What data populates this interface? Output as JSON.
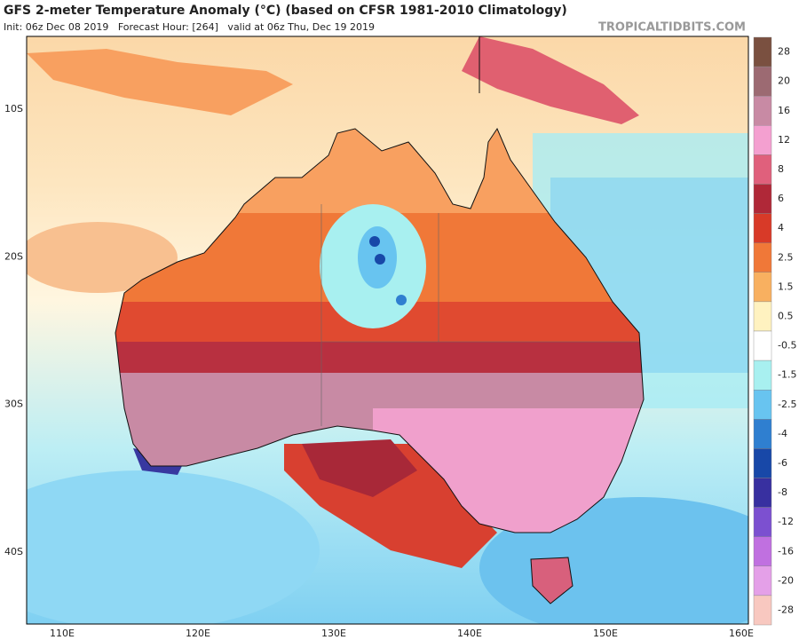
{
  "header": {
    "title": "GFS 2-meter Temperature Anomaly (°C) (based on CFSR 1981-2010 Climatology)",
    "subtitle": "Init: 06z Dec 08 2019   Forecast Hour: [264]   valid at 06z Thu, Dec 19 2019",
    "credit": "TROPICALTIDBITS.COM"
  },
  "map": {
    "lat_labels": [
      "10S",
      "20S",
      "30S",
      "40S"
    ],
    "lon_labels": [
      "110E",
      "120E",
      "130E",
      "140E",
      "150E",
      "160E"
    ]
  },
  "colorbar": {
    "levels": [
      {
        "value": 28,
        "color": "#7a5040"
      },
      {
        "value": 20,
        "color": "#9c6a72"
      },
      {
        "value": 16,
        "color": "#c88aa4"
      },
      {
        "value": 12,
        "color": "#f4a0d0"
      },
      {
        "value": 8,
        "color": "#e0607c"
      },
      {
        "value": 6,
        "color": "#b02838"
      },
      {
        "value": 4,
        "color": "#d83a28"
      },
      {
        "value": 2.5,
        "color": "#f07838"
      },
      {
        "value": 1.5,
        "color": "#f8b060"
      },
      {
        "value": 0.5,
        "color": "#fff2c0"
      },
      {
        "value": -0.5,
        "color": "#ffffff"
      },
      {
        "value": -1.5,
        "color": "#a8f0f0"
      },
      {
        "value": -2.5,
        "color": "#68c4f0"
      },
      {
        "value": -4,
        "color": "#2f7fd0"
      },
      {
        "value": -6,
        "color": "#1848a8"
      },
      {
        "value": -8,
        "color": "#3830a0"
      },
      {
        "value": -12,
        "color": "#7c50d0"
      },
      {
        "value": -16,
        "color": "#c070e0"
      },
      {
        "value": -20,
        "color": "#e4a0e8"
      },
      {
        "value": -28,
        "color": "#f8c8c0"
      }
    ]
  }
}
